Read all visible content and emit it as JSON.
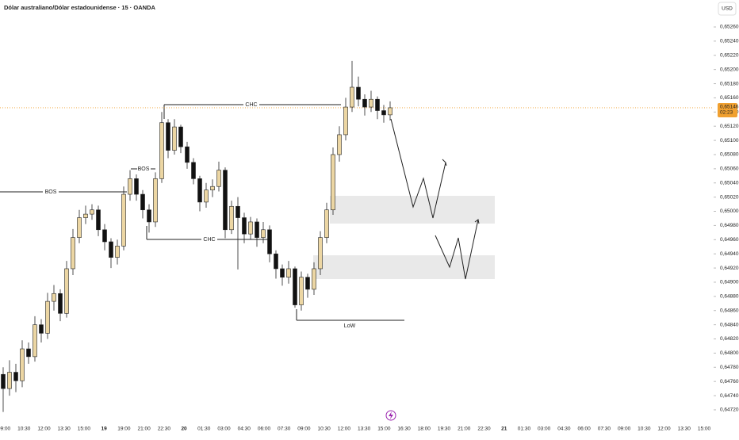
{
  "chart_data": {
    "type": "candlestick",
    "title": "Dólar australiano/Dólar estadounidense · 15 · OANDA",
    "currency": "USD",
    "ylim": [
      0.64711,
      0.65298
    ],
    "yticks": [
      {
        "value": 0.6526,
        "label": "0,65260"
      },
      {
        "value": 0.6524,
        "label": "0,65240"
      },
      {
        "value": 0.6522,
        "label": "0,65220"
      },
      {
        "value": 0.652,
        "label": "0,65200"
      },
      {
        "value": 0.6518,
        "label": "0,65180"
      },
      {
        "value": 0.6516,
        "label": "0,65160"
      },
      {
        "value": 0.6514,
        "label": "0,65140"
      },
      {
        "value": 0.6512,
        "label": "0,65120"
      },
      {
        "value": 0.651,
        "label": "0,65100"
      },
      {
        "value": 0.6508,
        "label": "0,65080"
      },
      {
        "value": 0.6506,
        "label": "0,65060"
      },
      {
        "value": 0.6504,
        "label": "0,65040"
      },
      {
        "value": 0.6502,
        "label": "0,65020"
      },
      {
        "value": 0.65,
        "label": "0,65000"
      },
      {
        "value": 0.6498,
        "label": "0,64980"
      },
      {
        "value": 0.6496,
        "label": "0,64960"
      },
      {
        "value": 0.6494,
        "label": "0,64940"
      },
      {
        "value": 0.6492,
        "label": "0,64920"
      },
      {
        "value": 0.649,
        "label": "0,64900"
      },
      {
        "value": 0.6488,
        "label": "0,64880"
      },
      {
        "value": 0.6486,
        "label": "0,64860"
      },
      {
        "value": 0.6484,
        "label": "0,64840"
      },
      {
        "value": 0.6482,
        "label": "0,64820"
      },
      {
        "value": 0.648,
        "label": "0,64800"
      },
      {
        "value": 0.6478,
        "label": "0,64780"
      },
      {
        "value": 0.6476,
        "label": "0,64760"
      },
      {
        "value": 0.6474,
        "label": "0,64740"
      },
      {
        "value": 0.6472,
        "label": "0,64720"
      }
    ],
    "grid": false,
    "x_labels": [
      "09:00",
      "10:30",
      "12:00",
      "13:30",
      "15:00",
      "19",
      "19:00",
      "21:00",
      "22:30",
      "20",
      "01:30",
      "03:00",
      "04:30",
      "06:00",
      "07:30",
      "09:00",
      "10:30",
      "12:00",
      "13:30",
      "15:00",
      "16:30",
      "18:00",
      "19:30",
      "21:00",
      "22:30",
      "21",
      "01:30",
      "03:00",
      "04:30",
      "06:00",
      "07:30",
      "09:00",
      "10:30",
      "12:00",
      "13:30",
      "15:00"
    ],
    "current_price": {
      "value": 0.65146,
      "label": "0,65146"
    },
    "countdown": "02:23",
    "annotations": [
      "BOS",
      "BOS",
      "CHC",
      "CHC",
      "LoW"
    ],
    "up_color": "#ecd6a3",
    "down_color": "#111111",
    "price_line_color": "#f0a030",
    "series": {
      "open": [
        0.6477,
        0.6475,
        0.64773,
        0.64761,
        0.64806,
        0.64795,
        0.6484,
        0.64828,
        0.64873,
        0.64884,
        0.64856,
        0.64919,
        0.64963,
        0.64991,
        0.64996,
        0.65002,
        0.64974,
        0.64957,
        0.64935,
        0.64951,
        0.65024,
        0.65046,
        0.65024,
        0.65002,
        0.64985,
        0.65046,
        0.65125,
        0.65086,
        0.65119,
        0.65091,
        0.65069,
        0.65046,
        0.65013,
        0.6503,
        0.65035,
        0.65058,
        0.64974,
        0.65007,
        0.64991,
        0.64968,
        0.64985,
        0.64963,
        0.64974,
        0.6494,
        0.64919,
        0.64907,
        0.64919,
        0.64868,
        0.64907,
        0.6489,
        0.64919,
        0.64963,
        0.65002,
        0.6508,
        0.65108,
        0.65147,
        0.65175,
        0.65158,
        0.65147,
        0.65158,
        0.65142,
        0.65136
      ],
      "high": [
        0.6478,
        0.6479,
        0.64785,
        0.64818,
        0.64815,
        0.64852,
        0.64848,
        0.64885,
        0.64896,
        0.6489,
        0.6493,
        0.64975,
        0.65002,
        0.65008,
        0.6501,
        0.65008,
        0.64982,
        0.64962,
        0.6496,
        0.65035,
        0.65058,
        0.65052,
        0.6503,
        0.6501,
        0.65055,
        0.6514,
        0.6513,
        0.6513,
        0.65122,
        0.65098,
        0.65075,
        0.6505,
        0.6504,
        0.65045,
        0.6507,
        0.65062,
        0.65015,
        0.6502,
        0.64998,
        0.64992,
        0.6499,
        0.64985,
        0.6498,
        0.64945,
        0.64925,
        0.6493,
        0.64922,
        0.64915,
        0.64912,
        0.64928,
        0.64972,
        0.65012,
        0.6509,
        0.6512,
        0.6516,
        0.65212,
        0.6519,
        0.65165,
        0.6517,
        0.65162,
        0.6515,
        0.65155
      ],
      "low": [
        0.64717,
        0.6474,
        0.64745,
        0.64752,
        0.64785,
        0.64788,
        0.64815,
        0.6482,
        0.6486,
        0.64845,
        0.6485,
        0.6491,
        0.64955,
        0.64982,
        0.64988,
        0.64965,
        0.64945,
        0.6492,
        0.64925,
        0.64945,
        0.65015,
        0.65015,
        0.6499,
        0.6497,
        0.64978,
        0.6504,
        0.65075,
        0.6508,
        0.65082,
        0.6506,
        0.65038,
        0.65,
        0.65005,
        0.6502,
        0.65028,
        0.64962,
        0.64968,
        0.64918,
        0.64955,
        0.6496,
        0.6495,
        0.64955,
        0.64928,
        0.64905,
        0.64895,
        0.64898,
        0.64864,
        0.6486,
        0.64878,
        0.64882,
        0.6491,
        0.64955,
        0.64995,
        0.6507,
        0.651,
        0.6514,
        0.65148,
        0.65135,
        0.6514,
        0.6513,
        0.65125,
        0.65128
      ],
      "close": [
        0.6475,
        0.64773,
        0.64761,
        0.64806,
        0.64795,
        0.6484,
        0.64828,
        0.64873,
        0.64884,
        0.64856,
        0.64919,
        0.64963,
        0.64991,
        0.64996,
        0.65002,
        0.64974,
        0.64957,
        0.64935,
        0.64951,
        0.65024,
        0.65046,
        0.65024,
        0.65002,
        0.64985,
        0.65046,
        0.65125,
        0.65086,
        0.65119,
        0.65091,
        0.65069,
        0.65046,
        0.65013,
        0.6503,
        0.65035,
        0.65058,
        0.64974,
        0.65007,
        0.64991,
        0.64968,
        0.64985,
        0.64963,
        0.64974,
        0.6494,
        0.64919,
        0.64907,
        0.64919,
        0.64868,
        0.64907,
        0.6489,
        0.64919,
        0.64963,
        0.65002,
        0.6508,
        0.65108,
        0.65147,
        0.65175,
        0.65158,
        0.65147,
        0.65158,
        0.65142,
        0.65136,
        0.65146
      ]
    }
  }
}
